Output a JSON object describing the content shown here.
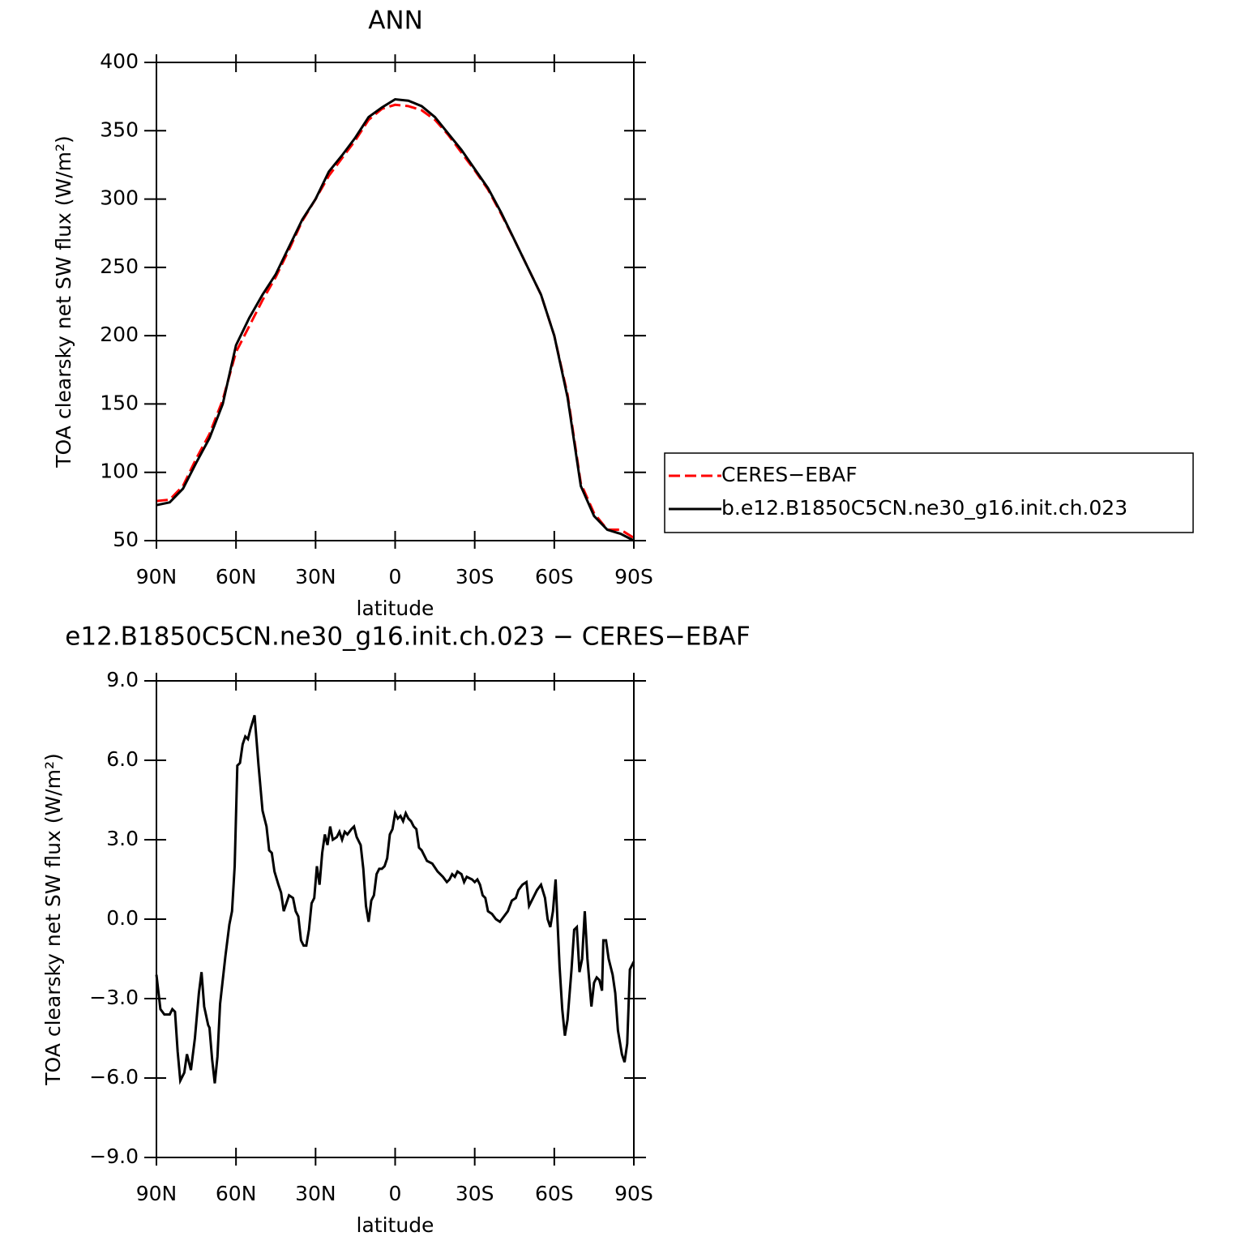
{
  "chart_data": [
    {
      "type": "line",
      "title": "ANN",
      "xlabel": "latitude",
      "ylabel": "TOA clearsky net SW flux (W/m²)",
      "x": [
        90,
        85,
        80,
        75,
        70,
        65,
        60,
        55,
        50,
        45,
        40,
        35,
        30,
        25,
        20,
        15,
        10,
        5,
        0,
        -5,
        -10,
        -15,
        -20,
        -25,
        -30,
        -35,
        -40,
        -45,
        -50,
        -55,
        -60,
        -65,
        -70,
        -75,
        -80,
        -85,
        -90
      ],
      "series": [
        {
          "name": "CERES−EBAF",
          "color": "#ff0000",
          "linestyle": "dashed",
          "values": [
            79,
            80,
            90,
            110,
            128,
            153,
            188,
            207,
            226,
            243,
            263,
            284,
            300,
            317,
            330,
            343,
            358,
            366,
            369,
            368,
            365,
            358,
            347,
            334,
            321,
            307,
            289,
            270,
            250,
            230,
            200,
            157,
            92,
            70,
            58,
            58,
            52
          ]
        },
        {
          "name": "b.e12.B1850C5CN.ne30_g16.init.ch.023",
          "color": "#000000",
          "linestyle": "solid",
          "values": [
            76,
            78,
            88,
            107,
            125,
            150,
            193,
            213,
            230,
            245,
            265,
            285,
            300,
            320,
            332,
            345,
            360,
            367,
            373,
            372,
            368,
            360,
            348,
            336,
            322,
            308,
            290,
            270,
            250,
            230,
            200,
            155,
            90,
            68,
            58,
            55,
            50
          ]
        }
      ],
      "xlim": [
        90,
        -90
      ],
      "xticks": [
        {
          "value": 90,
          "label": "90N"
        },
        {
          "value": 60,
          "label": "60N"
        },
        {
          "value": 30,
          "label": "30N"
        },
        0,
        {
          "value": -30,
          "label": "30S"
        },
        {
          "value": -60,
          "label": "60S"
        },
        {
          "value": -90,
          "label": "90S"
        }
      ],
      "ylim": [
        50,
        400
      ],
      "yticks": [
        50,
        100,
        150,
        200,
        250,
        300,
        350,
        400
      ],
      "legend": "right"
    },
    {
      "type": "line",
      "title": "e12.B1850C5CN.ne30_g16.init.ch.023 − CERES−EBAF",
      "xlabel": "latitude",
      "ylabel": "TOA clearsky net SW flux (W/m²)",
      "x": [
        90,
        88.5,
        87,
        85,
        84,
        83,
        82,
        81,
        79.5,
        78.5,
        77,
        75.5,
        74,
        73,
        72,
        70.5,
        70,
        69,
        68,
        67,
        66,
        64,
        62.5,
        61.5,
        60.5,
        59.5,
        58.5,
        57.5,
        56.5,
        55.5,
        54.5,
        53,
        51.5,
        50,
        48.5,
        47.5,
        46.5,
        45.5,
        44,
        43,
        42,
        41,
        40,
        38.5,
        37.5,
        36.5,
        35.5,
        34.5,
        33.5,
        32.5,
        31.5,
        30.5,
        29.5,
        28.5,
        27.5,
        26.5,
        25.5,
        24.5,
        23.5,
        22,
        21,
        20,
        19,
        18,
        16.5,
        15.5,
        14.5,
        13,
        12,
        11,
        10,
        9,
        8,
        7,
        6,
        5,
        4,
        3,
        2,
        1,
        0,
        -1,
        -2,
        -3,
        -4,
        -5,
        -6,
        -7,
        -8,
        -9,
        -10,
        -11,
        -12,
        -14,
        -16,
        -18,
        -19.5,
        -20.5,
        -21.5,
        -22.5,
        -23.5,
        -25,
        -26,
        -27,
        -29,
        -30,
        -31,
        -32,
        -33,
        -34,
        -35,
        -36.5,
        -38,
        -39.5,
        -41,
        -42.5,
        -44,
        -45.5,
        -46.5,
        -48,
        -49.5,
        -50.5,
        -52,
        -53.5,
        -55,
        -56.5,
        -57.5,
        -58.5,
        -59.5,
        -60.5,
        -62,
        -63,
        -64,
        -65,
        -66.5,
        -67.5,
        -68.5,
        -69.5,
        -70.5,
        -71.5,
        -72.5,
        -74,
        -75,
        -76,
        -77,
        -78,
        -78.5,
        -79.5,
        -80.5,
        -82,
        -83,
        -84,
        -85.5,
        -86.5,
        -87.5,
        -88.5,
        -90
      ],
      "series": [
        {
          "color": "#000000",
          "linestyle": "solid",
          "values": [
            -2.1,
            -3.4,
            -3.6,
            -3.6,
            -3.4,
            -3.5,
            -5.0,
            -6.1,
            -5.8,
            -5.1,
            -5.7,
            -4.5,
            -2.8,
            -2.0,
            -3.3,
            -4.0,
            -4.1,
            -5.3,
            -6.2,
            -5.2,
            -3.2,
            -1.4,
            -0.2,
            0.3,
            2.0,
            5.8,
            5.9,
            6.6,
            6.9,
            6.8,
            7.2,
            7.7,
            5.8,
            4.1,
            3.5,
            2.6,
            2.5,
            1.8,
            1.3,
            1.0,
            0.3,
            0.6,
            0.9,
            0.8,
            0.3,
            0.1,
            -0.8,
            -1.0,
            -1.0,
            -0.4,
            0.6,
            0.8,
            2.0,
            1.3,
            2.5,
            3.2,
            2.8,
            3.5,
            3.0,
            3.1,
            3.3,
            3.0,
            3.3,
            3.2,
            3.4,
            3.5,
            3.1,
            2.8,
            1.9,
            0.5,
            -0.1,
            0.7,
            0.9,
            1.7,
            1.9,
            1.9,
            2.0,
            2.3,
            3.2,
            3.4,
            4.0,
            3.8,
            3.9,
            3.7,
            4.0,
            3.8,
            3.7,
            3.5,
            3.4,
            2.7,
            2.6,
            2.4,
            2.2,
            2.1,
            1.8,
            1.6,
            1.4,
            1.5,
            1.7,
            1.6,
            1.8,
            1.7,
            1.4,
            1.6,
            1.5,
            1.4,
            1.5,
            1.3,
            0.9,
            0.8,
            0.3,
            0.2,
            0.0,
            -0.1,
            0.1,
            0.3,
            0.7,
            0.8,
            1.1,
            1.3,
            1.4,
            0.5,
            0.8,
            1.1,
            1.3,
            0.8,
            0.0,
            -0.3,
            0.3,
            1.5,
            -1.8,
            -3.4,
            -4.4,
            -3.8,
            -1.9,
            -0.4,
            -0.3,
            -2.0,
            -1.5,
            0.3,
            -1.5,
            -3.3,
            -2.4,
            -2.2,
            -2.3,
            -2.7,
            -0.8,
            -0.8,
            -1.5,
            -2.1,
            -2.8,
            -4.2,
            -5.1,
            -5.4,
            -4.7,
            -1.9,
            -1.6
          ]
        }
      ],
      "xlim": [
        90,
        -90
      ],
      "xticks": [
        {
          "value": 90,
          "label": "90N"
        },
        {
          "value": 60,
          "label": "60N"
        },
        {
          "value": 30,
          "label": "30N"
        },
        0,
        {
          "value": -30,
          "label": "30S"
        },
        {
          "value": -60,
          "label": "60S"
        },
        {
          "value": -90,
          "label": "90S"
        }
      ],
      "ylim": [
        -9,
        9
      ],
      "yticks": [
        {
          "value": -9,
          "label": "−9.0"
        },
        {
          "value": -6,
          "label": "−6.0"
        },
        {
          "value": -3,
          "label": "−3.0"
        },
        {
          "value": 0,
          "label": "0.0"
        },
        {
          "value": 3,
          "label": "3.0"
        },
        {
          "value": 6,
          "label": "6.0"
        },
        {
          "value": 9,
          "label": "9.0"
        }
      ]
    }
  ]
}
